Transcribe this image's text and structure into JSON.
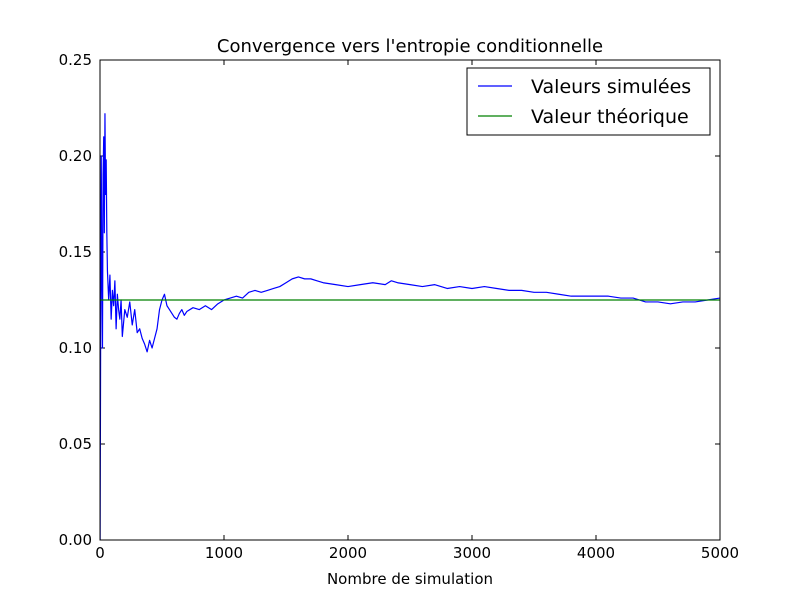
{
  "chart_data": {
    "type": "line",
    "title": "Convergence vers l'entropie conditionnelle",
    "xlabel": "Nombre de simulation",
    "ylabel": "",
    "xlim": [
      0,
      5000
    ],
    "ylim": [
      0,
      0.25
    ],
    "xticks": [
      0,
      1000,
      2000,
      3000,
      4000,
      5000
    ],
    "xtick_labels": [
      "0",
      "1000",
      "2000",
      "3000",
      "4000",
      "5000"
    ],
    "yticks": [
      0,
      0.05,
      0.1,
      0.15,
      0.2,
      0.25
    ],
    "ytick_labels": [
      "0.00",
      "0.05",
      "0.10",
      "0.15",
      "0.20",
      "0.25"
    ],
    "grid": false,
    "legend": "top-right",
    "series": [
      {
        "name": "Valeurs simulées",
        "color": "#0000ff",
        "x": [
          1,
          5,
          10,
          15,
          20,
          25,
          30,
          35,
          40,
          45,
          50,
          55,
          60,
          70,
          80,
          90,
          100,
          110,
          120,
          130,
          140,
          150,
          160,
          170,
          180,
          200,
          220,
          240,
          260,
          280,
          300,
          320,
          340,
          360,
          380,
          400,
          420,
          440,
          460,
          480,
          500,
          520,
          540,
          560,
          580,
          600,
          620,
          640,
          660,
          680,
          700,
          750,
          800,
          850,
          900,
          950,
          1000,
          1050,
          1100,
          1150,
          1200,
          1250,
          1300,
          1350,
          1400,
          1450,
          1500,
          1550,
          1600,
          1650,
          1700,
          1750,
          1800,
          1900,
          2000,
          2100,
          2200,
          2300,
          2350,
          2400,
          2500,
          2600,
          2700,
          2800,
          2900,
          3000,
          3100,
          3200,
          3300,
          3400,
          3500,
          3600,
          3700,
          3800,
          3900,
          4000,
          4100,
          4200,
          4300,
          4400,
          4500,
          4600,
          4700,
          4800,
          4900,
          5000
        ],
        "y": [
          0.0,
          0.1,
          0.2,
          0.14,
          0.1,
          0.19,
          0.21,
          0.16,
          0.222,
          0.18,
          0.198,
          0.16,
          0.14,
          0.125,
          0.138,
          0.115,
          0.13,
          0.122,
          0.135,
          0.11,
          0.128,
          0.12,
          0.115,
          0.125,
          0.106,
          0.12,
          0.116,
          0.124,
          0.112,
          0.12,
          0.108,
          0.11,
          0.105,
          0.102,
          0.098,
          0.104,
          0.1,
          0.105,
          0.11,
          0.12,
          0.125,
          0.128,
          0.122,
          0.12,
          0.118,
          0.116,
          0.115,
          0.118,
          0.12,
          0.117,
          0.119,
          0.121,
          0.12,
          0.122,
          0.12,
          0.123,
          0.125,
          0.126,
          0.127,
          0.126,
          0.129,
          0.13,
          0.129,
          0.13,
          0.131,
          0.132,
          0.134,
          0.136,
          0.137,
          0.136,
          0.136,
          0.135,
          0.134,
          0.133,
          0.132,
          0.133,
          0.134,
          0.133,
          0.135,
          0.134,
          0.133,
          0.132,
          0.133,
          0.131,
          0.132,
          0.131,
          0.132,
          0.131,
          0.13,
          0.13,
          0.129,
          0.129,
          0.128,
          0.127,
          0.127,
          0.127,
          0.127,
          0.126,
          0.126,
          0.124,
          0.124,
          0.123,
          0.124,
          0.124,
          0.125,
          0.126
        ]
      },
      {
        "name": "Valeur théorique",
        "color": "#008000",
        "x": [
          0,
          5000
        ],
        "y": [
          0.125,
          0.125
        ]
      }
    ]
  }
}
